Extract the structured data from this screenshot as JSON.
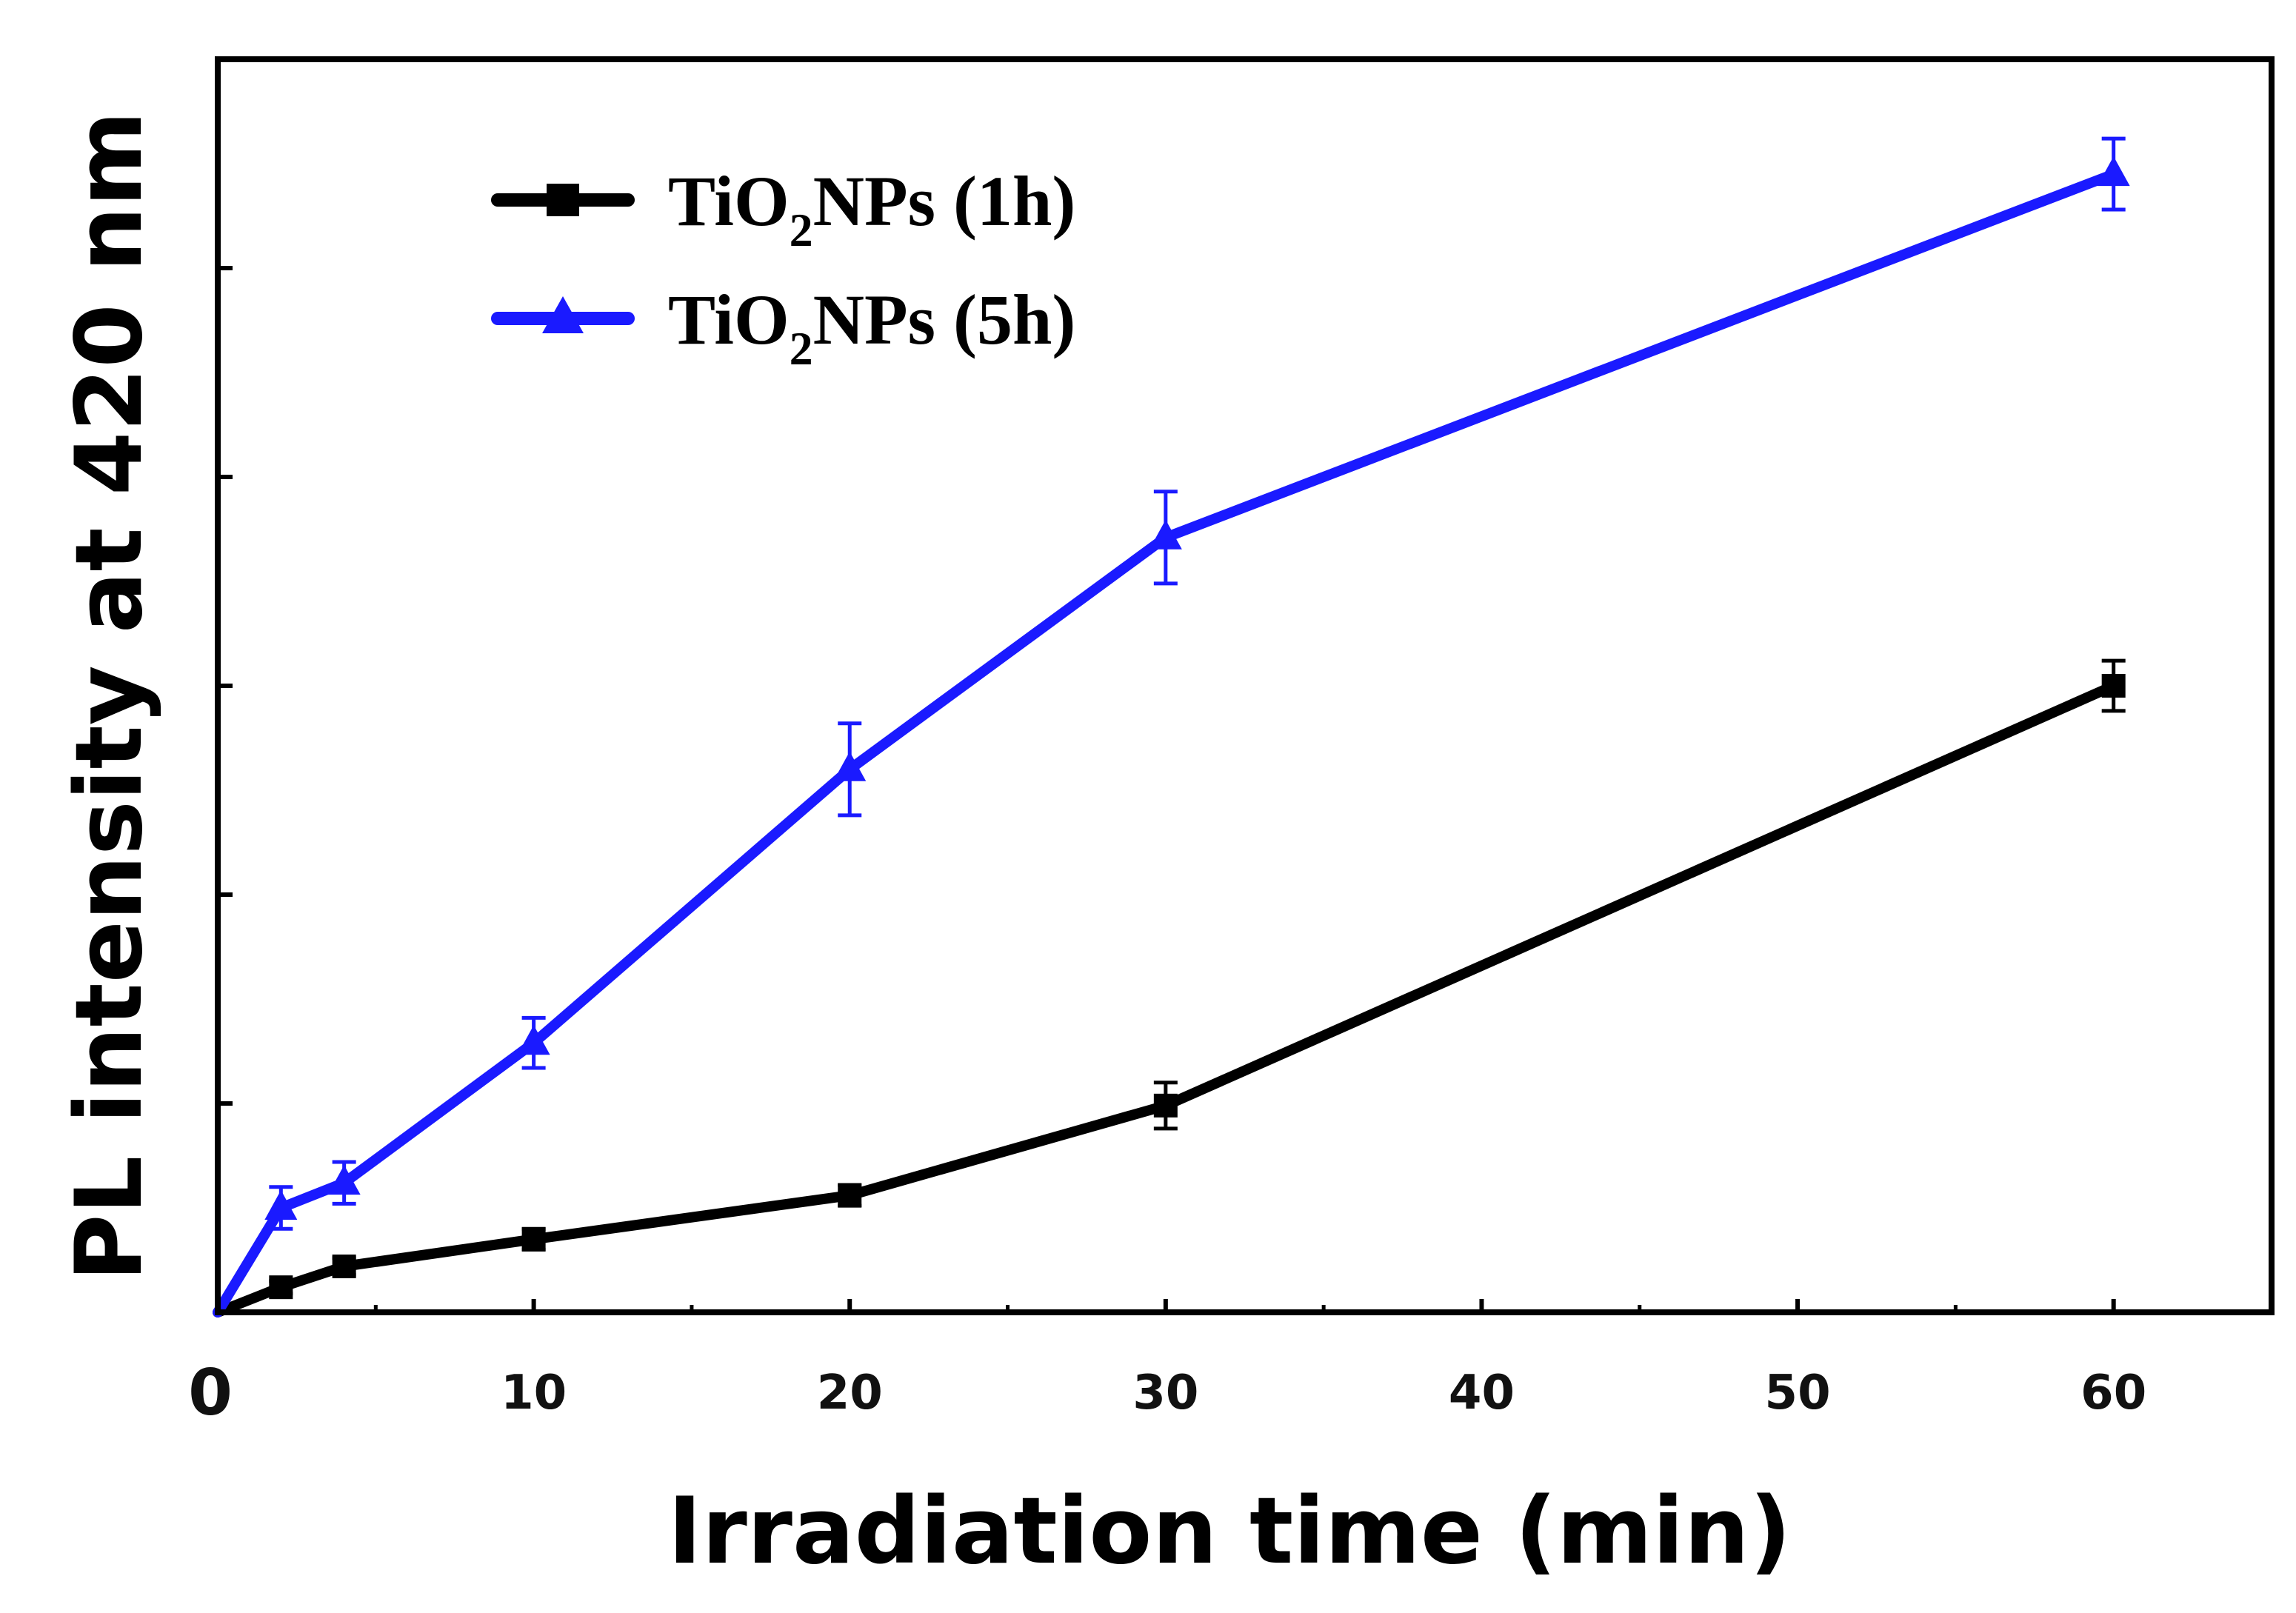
{
  "chart_data": {
    "type": "line",
    "title": "",
    "xlabel": "Irradiation time (min)",
    "ylabel": "PL intensity at 420 nm",
    "xlim": [
      0,
      65
    ],
    "ylim": [
      0,
      6
    ],
    "xticks": [
      10,
      20,
      30,
      40,
      50,
      60
    ],
    "xtick_labels": [
      "10",
      "20",
      "30",
      "40",
      "50",
      "60"
    ],
    "origin_label": "0",
    "yticks": [
      1,
      2,
      3,
      4,
      5
    ],
    "ytick_labels": [],
    "grid": false,
    "legend_position": "top-left",
    "series": [
      {
        "name": "TiO2NPs (1h)",
        "legend": {
          "prefix": "TiO",
          "subscript": "2",
          "suffix": "NPs (1h)"
        },
        "color": "#000000",
        "marker": "square",
        "x": [
          0,
          2,
          4,
          10,
          20,
          30,
          60
        ],
        "y": [
          0,
          0.12,
          0.22,
          0.35,
          0.56,
          0.99,
          3.0
        ],
        "error": [
          0,
          0.03,
          0.04,
          0.05,
          0.05,
          0.11,
          0.12
        ]
      },
      {
        "name": "TiO2NPs (5h)",
        "legend": {
          "prefix": "TiO",
          "subscript": "2",
          "suffix": "NPs (5h)"
        },
        "color": "#1a1aff",
        "marker": "triangle",
        "x": [
          0,
          2,
          4,
          10,
          20,
          30,
          60
        ],
        "y": [
          0,
          0.5,
          0.62,
          1.29,
          2.6,
          3.71,
          5.45
        ],
        "error": [
          0,
          0.1,
          0.1,
          0.12,
          0.22,
          0.22,
          0.17
        ]
      }
    ]
  }
}
